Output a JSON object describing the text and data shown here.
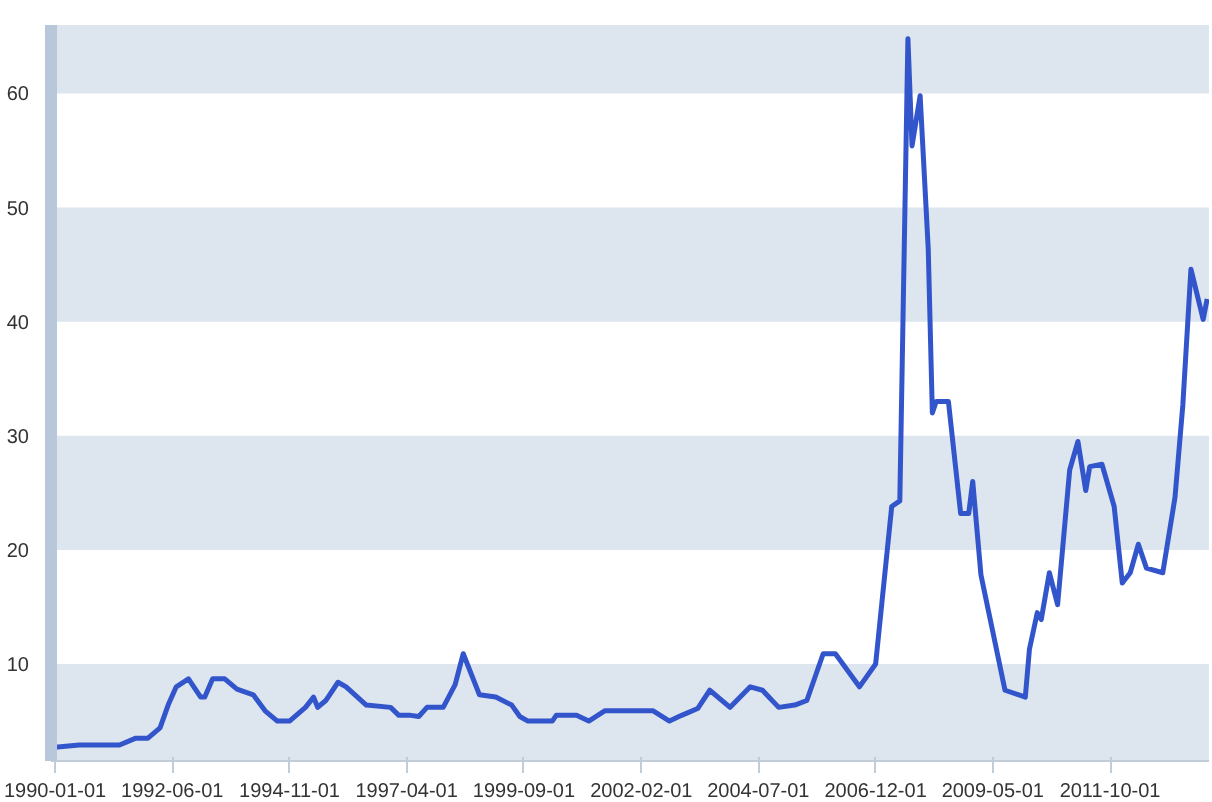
{
  "chart_data": {
    "type": "line",
    "x": [
      "1990-01",
      "1990-07",
      "1991-05",
      "1991-09",
      "1991-12",
      "1992-03",
      "1992-05",
      "1992-07",
      "1992-10",
      "1993-01",
      "1993-02",
      "1993-04",
      "1993-07",
      "1993-10",
      "1994-02",
      "1994-05",
      "1994-08",
      "1994-11",
      "1995-03",
      "1995-05",
      "1995-06",
      "1995-08",
      "1995-11",
      "1996-01",
      "1996-06",
      "1996-12",
      "1997-02",
      "1997-05",
      "1997-07",
      "1997-09",
      "1998-01",
      "1998-04",
      "1998-06",
      "1998-10",
      "1999-02",
      "1999-06",
      "1999-08",
      "1999-10",
      "2000-04",
      "2000-05",
      "2000-10",
      "2001-01",
      "2001-05",
      "2002-05",
      "2002-09",
      "2002-12",
      "2003-04",
      "2003-07",
      "2003-12",
      "2004-05",
      "2004-08",
      "2004-12",
      "2005-04",
      "2005-07",
      "2005-11",
      "2006-02",
      "2006-08",
      "2006-12",
      "2007-04",
      "2007-06",
      "2007-08",
      "2007-09",
      "2007-11",
      "2008-01",
      "2008-02",
      "2008-03",
      "2008-06",
      "2008-09",
      "2008-11",
      "2008-12",
      "2009-02",
      "2009-08",
      "2010-01",
      "2010-02",
      "2010-04",
      "2010-05",
      "2010-07",
      "2010-09",
      "2010-12",
      "2011-02",
      "2011-04",
      "2011-05",
      "2011-08",
      "2011-11",
      "2012-01",
      "2012-03",
      "2012-05",
      "2012-07",
      "2012-11",
      "2013-02",
      "2013-04",
      "2013-06",
      "2013-09",
      "2013-10"
    ],
    "series": [
      {
        "color": "#3355cc",
        "values": [
          2.7,
          2.9,
          2.9,
          3.5,
          3.5,
          4.4,
          6.4,
          8,
          8.7,
          7.1,
          7.1,
          8.7,
          8.7,
          7.8,
          7.3,
          5.9,
          5,
          5,
          6.2,
          7.1,
          6.2,
          6.8,
          8.4,
          8,
          6.4,
          6.2,
          5.5,
          5.5,
          5.4,
          6.2,
          6.2,
          8.2,
          10.9,
          7.3,
          7.1,
          6.4,
          5.4,
          5,
          5,
          5.5,
          5.5,
          5,
          5.9,
          5.9,
          5,
          5.5,
          6.1,
          7.7,
          6.2,
          8,
          7.7,
          6.2,
          6.4,
          6.8,
          10.9,
          10.9,
          8,
          10,
          23.8,
          24.3,
          64.8,
          55.4,
          59.8,
          46.4,
          32,
          33,
          33,
          23.2,
          23.2,
          26,
          17.8,
          7.7,
          7.1,
          11.3,
          14.5,
          13.9,
          18,
          15.2,
          27,
          29.5,
          25.2,
          27.3,
          27.5,
          23.8,
          17.1,
          18,
          20.5,
          18.4,
          18,
          24.6,
          32.7,
          44.6,
          40.2,
          42
        ]
      }
    ],
    "xlim": [
      "1989-12-01",
      "2013-10-15"
    ],
    "xticks": [
      "1990-01-01",
      "1992-06-01",
      "1994-11-01",
      "1997-04-01",
      "1999-09-01",
      "2002-02-01",
      "2004-07-01",
      "2006-12-01",
      "2009-05-01",
      "2011-10-01"
    ],
    "ylim": [
      1.5,
      66
    ],
    "yticks": [
      10,
      20,
      30,
      40,
      50,
      60
    ],
    "bands": [
      {
        "axis": "y",
        "from": 1.5,
        "to": 10,
        "color": "#dde5ee"
      },
      {
        "axis": "y",
        "from": 20,
        "to": 30,
        "color": "#dde5ee"
      },
      {
        "axis": "y",
        "from": 40,
        "to": 50,
        "color": "#dde5ee"
      },
      {
        "axis": "y",
        "from": 60,
        "to": 66,
        "color": "#dde5ee"
      }
    ],
    "grid": false,
    "marker": "none",
    "line_style": "solid"
  }
}
